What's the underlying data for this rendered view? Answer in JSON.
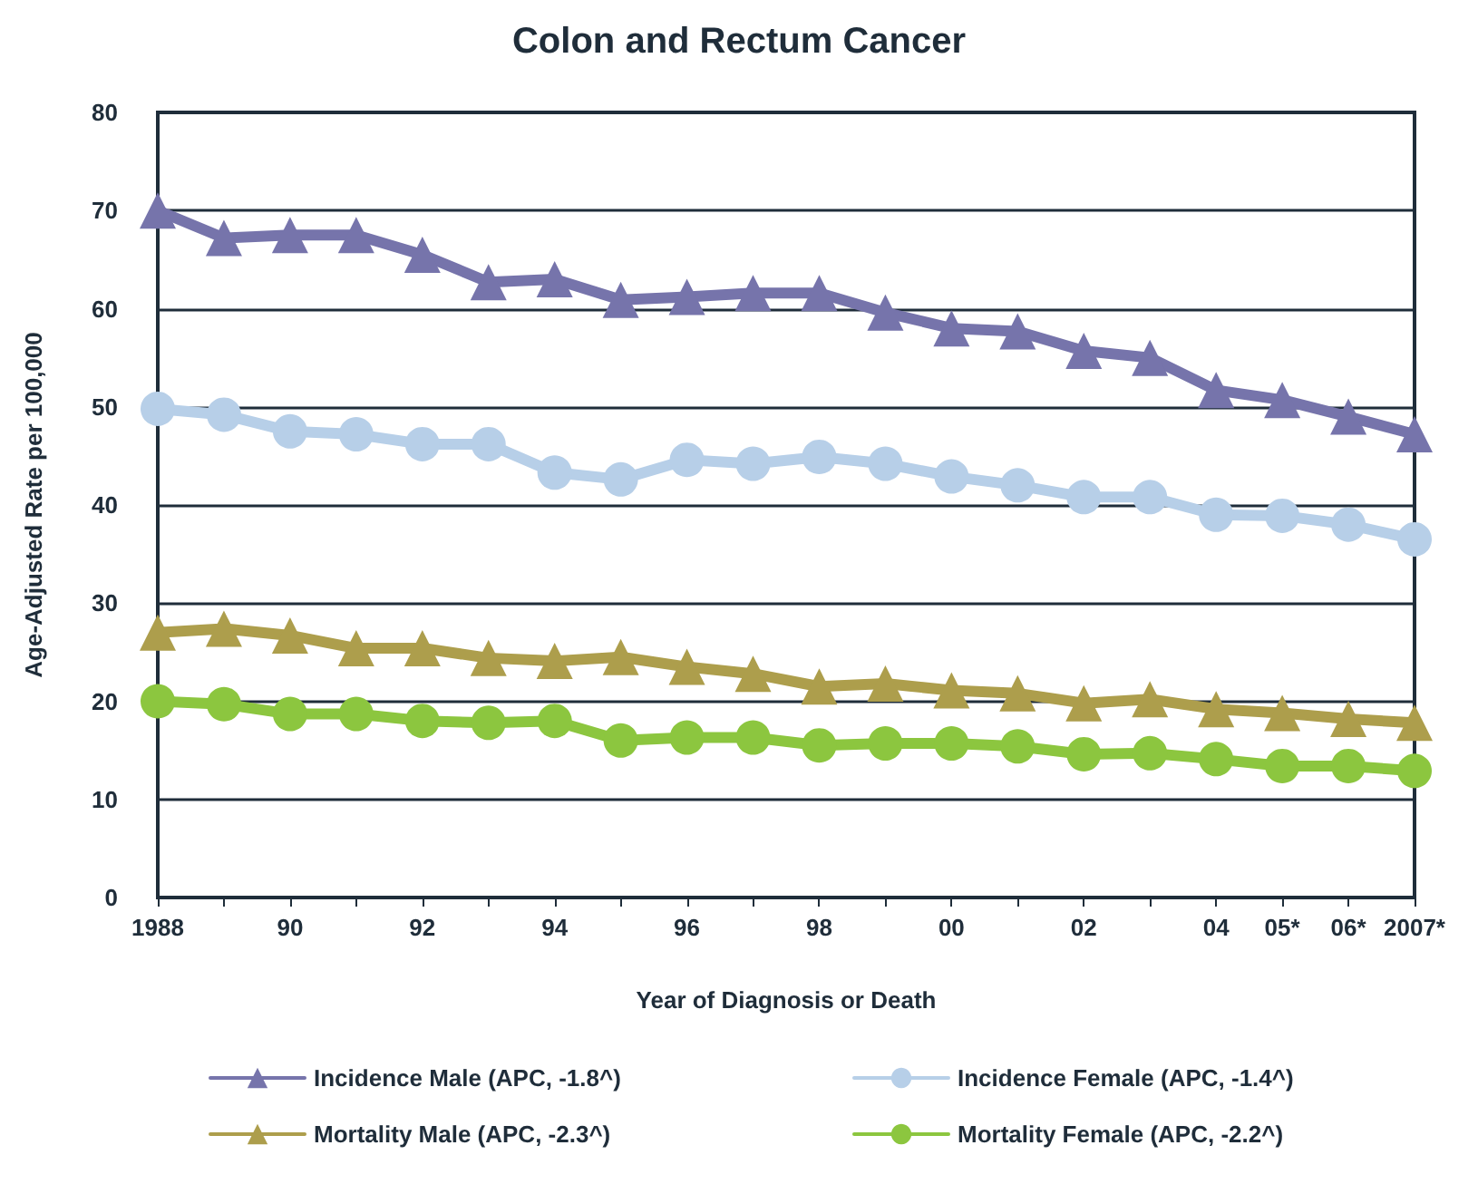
{
  "chart_data": {
    "type": "line",
    "title": "Colon and Rectum Cancer",
    "xlabel": "Year of Diagnosis or Death",
    "ylabel": "Age-Adjusted Rate per 100,000",
    "categories": [
      "1988",
      null,
      "90",
      null,
      "92",
      null,
      "94",
      null,
      "96",
      null,
      "98",
      null,
      "00",
      null,
      "02",
      null,
      "04",
      "05*",
      "06*",
      "2007*"
    ],
    "series": [
      {
        "name": "Incidence Male (APC, -1.8^)",
        "color": "#7674ab",
        "marker": "triangle",
        "values": [
          70,
          67.2,
          67.5,
          67.5,
          65.5,
          62.7,
          63,
          60.9,
          61.2,
          61.6,
          61.6,
          59.6,
          58,
          57.7,
          55.7,
          55,
          51.7,
          50.7,
          49,
          47.2
        ]
      },
      {
        "name": "Incidence Female (APC, -1.4^)",
        "color": "#b7cfe8",
        "marker": "circle",
        "values": [
          49.8,
          49.2,
          47.5,
          47.2,
          46.2,
          46.2,
          43.3,
          42.6,
          44.6,
          44.2,
          44.9,
          44.2,
          42.9,
          42,
          40.8,
          40.8,
          39,
          38.9,
          38,
          36.5
        ]
      },
      {
        "name": "Mortality Male (APC, -2.3^)",
        "color": "#ad9e4c",
        "marker": "triangle",
        "values": [
          27,
          27.4,
          26.7,
          25.4,
          25.4,
          24.4,
          24.1,
          24.5,
          23.5,
          22.8,
          21.5,
          21.8,
          21.1,
          20.8,
          19.8,
          20.2,
          19.2,
          18.8,
          18.2,
          17.8
        ]
      },
      {
        "name": "Mortality Female (APC, -2.2^)",
        "color": "#8cc63f",
        "marker": "circle",
        "values": [
          20,
          19.7,
          18.7,
          18.7,
          18,
          17.8,
          18,
          16,
          16.3,
          16.3,
          15.5,
          15.7,
          15.7,
          15.4,
          14.6,
          14.7,
          14.1,
          13.4,
          13.4,
          12.9
        ]
      }
    ],
    "ylim": [
      0,
      80
    ],
    "yticks": [
      0,
      10,
      20,
      30,
      40,
      50,
      60,
      70,
      80
    ],
    "grid": "y",
    "legend": "bottom",
    "line_style": "solid"
  }
}
